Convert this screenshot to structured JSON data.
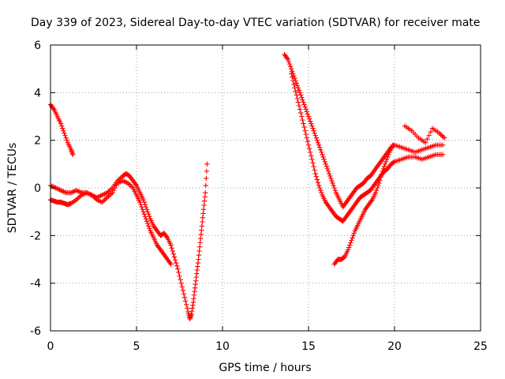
{
  "chart_data": {
    "type": "scatter",
    "title": "Day 339 of 2023, Sidereal Day-to-day VTEC variation (SDTVAR) for receiver mate",
    "xlabel": "GPS time / hours",
    "ylabel": "SDTVAR / TECUs",
    "xlim": [
      0,
      25
    ],
    "ylim": [
      -6,
      6
    ],
    "xticks": [
      0,
      5,
      10,
      15,
      20,
      25
    ],
    "yticks": [
      -6,
      -4,
      -2,
      0,
      2,
      4,
      6
    ],
    "grid": true,
    "legend": "none",
    "marker": "plus",
    "color": "#ff0000",
    "series": [
      {
        "x": [
          0.0,
          0.2,
          0.4,
          0.6,
          0.8,
          1.0,
          1.2,
          1.3
        ],
        "y": [
          3.5,
          3.3,
          3.0,
          2.7,
          2.3,
          1.9,
          1.6,
          1.4
        ]
      },
      {
        "x": [
          0.0,
          0.3,
          0.6,
          0.9,
          1.2,
          1.5,
          1.8,
          2.1,
          2.4,
          2.7,
          3.0,
          3.3,
          3.6,
          3.9,
          4.2,
          4.4,
          4.6,
          4.8,
          5.0,
          5.2,
          5.4,
          5.6,
          5.8,
          6.0,
          6.2,
          6.4,
          6.6,
          6.8,
          7.0,
          7.2,
          7.4,
          7.6,
          7.8,
          8.0,
          8.1,
          8.2,
          8.3,
          8.4,
          8.5,
          8.6,
          8.7,
          8.8,
          8.9,
          9.0,
          9.1
        ],
        "y": [
          0.1,
          0.0,
          -0.1,
          -0.2,
          -0.2,
          -0.1,
          -0.2,
          -0.2,
          -0.3,
          -0.4,
          -0.3,
          -0.2,
          0.0,
          0.3,
          0.5,
          0.6,
          0.5,
          0.3,
          0.1,
          -0.2,
          -0.5,
          -0.9,
          -1.3,
          -1.6,
          -1.8,
          -2.0,
          -1.9,
          -2.1,
          -2.4,
          -2.9,
          -3.4,
          -4.0,
          -4.6,
          -5.2,
          -5.5,
          -5.3,
          -4.8,
          -4.2,
          -3.6,
          -3.0,
          -2.3,
          -1.6,
          -0.9,
          -0.2,
          1.0
        ]
      },
      {
        "x": [
          0.0,
          0.2,
          0.4,
          0.6,
          0.8,
          1.0,
          1.2,
          1.5,
          1.8,
          2.1,
          2.4,
          2.7,
          3.0,
          3.3,
          3.6,
          3.9,
          4.2,
          4.5,
          4.8,
          5.0,
          5.2,
          5.4,
          5.6,
          5.8,
          6.0,
          6.2,
          6.4,
          6.6,
          6.8,
          7.0
        ],
        "y": [
          -0.5,
          -0.55,
          -0.6,
          -0.6,
          -0.65,
          -0.7,
          -0.65,
          -0.5,
          -0.3,
          -0.2,
          -0.3,
          -0.5,
          -0.6,
          -0.4,
          -0.2,
          0.2,
          0.3,
          0.2,
          0.0,
          -0.3,
          -0.6,
          -1.0,
          -1.4,
          -1.8,
          -2.1,
          -2.4,
          -2.6,
          -2.8,
          -3.0,
          -3.2
        ]
      },
      {
        "x": [
          13.6,
          13.8,
          14.0,
          14.2,
          14.4,
          14.6,
          14.8,
          15.0,
          15.2,
          15.4,
          15.6,
          15.8,
          16.0,
          16.2,
          16.4,
          16.6,
          16.8,
          17.0,
          17.2,
          17.4,
          17.6,
          17.8,
          18.0,
          18.2,
          18.4,
          18.6,
          18.8,
          19.0,
          19.2,
          19.4,
          19.6,
          19.8,
          20.0,
          20.4,
          20.8,
          21.2,
          21.6,
          22.0,
          22.4,
          22.8
        ],
        "y": [
          5.6,
          5.4,
          5.0,
          4.6,
          4.2,
          3.8,
          3.4,
          3.0,
          2.6,
          2.2,
          1.8,
          1.4,
          1.0,
          0.6,
          0.2,
          -0.2,
          -0.5,
          -0.8,
          -0.6,
          -0.4,
          -0.2,
          0.0,
          0.1,
          0.2,
          0.4,
          0.5,
          0.7,
          0.9,
          1.1,
          1.3,
          1.5,
          1.7,
          1.8,
          1.7,
          1.6,
          1.5,
          1.6,
          1.7,
          1.8,
          1.8
        ]
      },
      {
        "x": [
          14.0,
          14.2,
          14.4,
          14.6,
          14.8,
          15.0,
          15.2,
          15.4,
          15.6,
          15.8,
          16.0,
          16.2,
          16.4,
          16.6,
          16.8,
          17.0,
          17.2,
          17.4,
          17.6,
          17.8,
          18.0,
          18.2,
          18.4,
          18.6,
          18.8,
          19.0,
          19.2,
          19.4,
          19.6,
          19.8,
          20.0,
          20.4,
          20.8,
          21.2,
          21.6,
          22.0,
          22.4,
          22.8
        ],
        "y": [
          4.8,
          4.2,
          3.6,
          3.0,
          2.4,
          1.8,
          1.2,
          0.6,
          0.1,
          -0.3,
          -0.6,
          -0.8,
          -1.0,
          -1.2,
          -1.3,
          -1.4,
          -1.2,
          -1.0,
          -0.8,
          -0.6,
          -0.4,
          -0.3,
          -0.2,
          -0.1,
          0.1,
          0.3,
          0.5,
          0.7,
          0.8,
          1.0,
          1.1,
          1.2,
          1.3,
          1.3,
          1.2,
          1.3,
          1.4,
          1.4
        ]
      },
      {
        "x": [
          16.5,
          16.7,
          16.9,
          17.1,
          17.3,
          17.5,
          17.7,
          17.9,
          18.1,
          18.3,
          18.5,
          18.7,
          18.9,
          19.1,
          19.3,
          19.5,
          19.7,
          19.9
        ],
        "y": [
          -3.2,
          -3.0,
          -3.0,
          -2.9,
          -2.6,
          -2.2,
          -1.8,
          -1.5,
          -1.2,
          -0.9,
          -0.7,
          -0.5,
          -0.2,
          0.2,
          0.7,
          1.1,
          1.5,
          1.8
        ]
      },
      {
        "x": [
          20.6,
          21.0,
          21.4,
          21.8,
          22.2,
          22.6,
          22.9
        ],
        "y": [
          2.6,
          2.4,
          2.1,
          1.9,
          2.5,
          2.3,
          2.1
        ]
      }
    ]
  }
}
